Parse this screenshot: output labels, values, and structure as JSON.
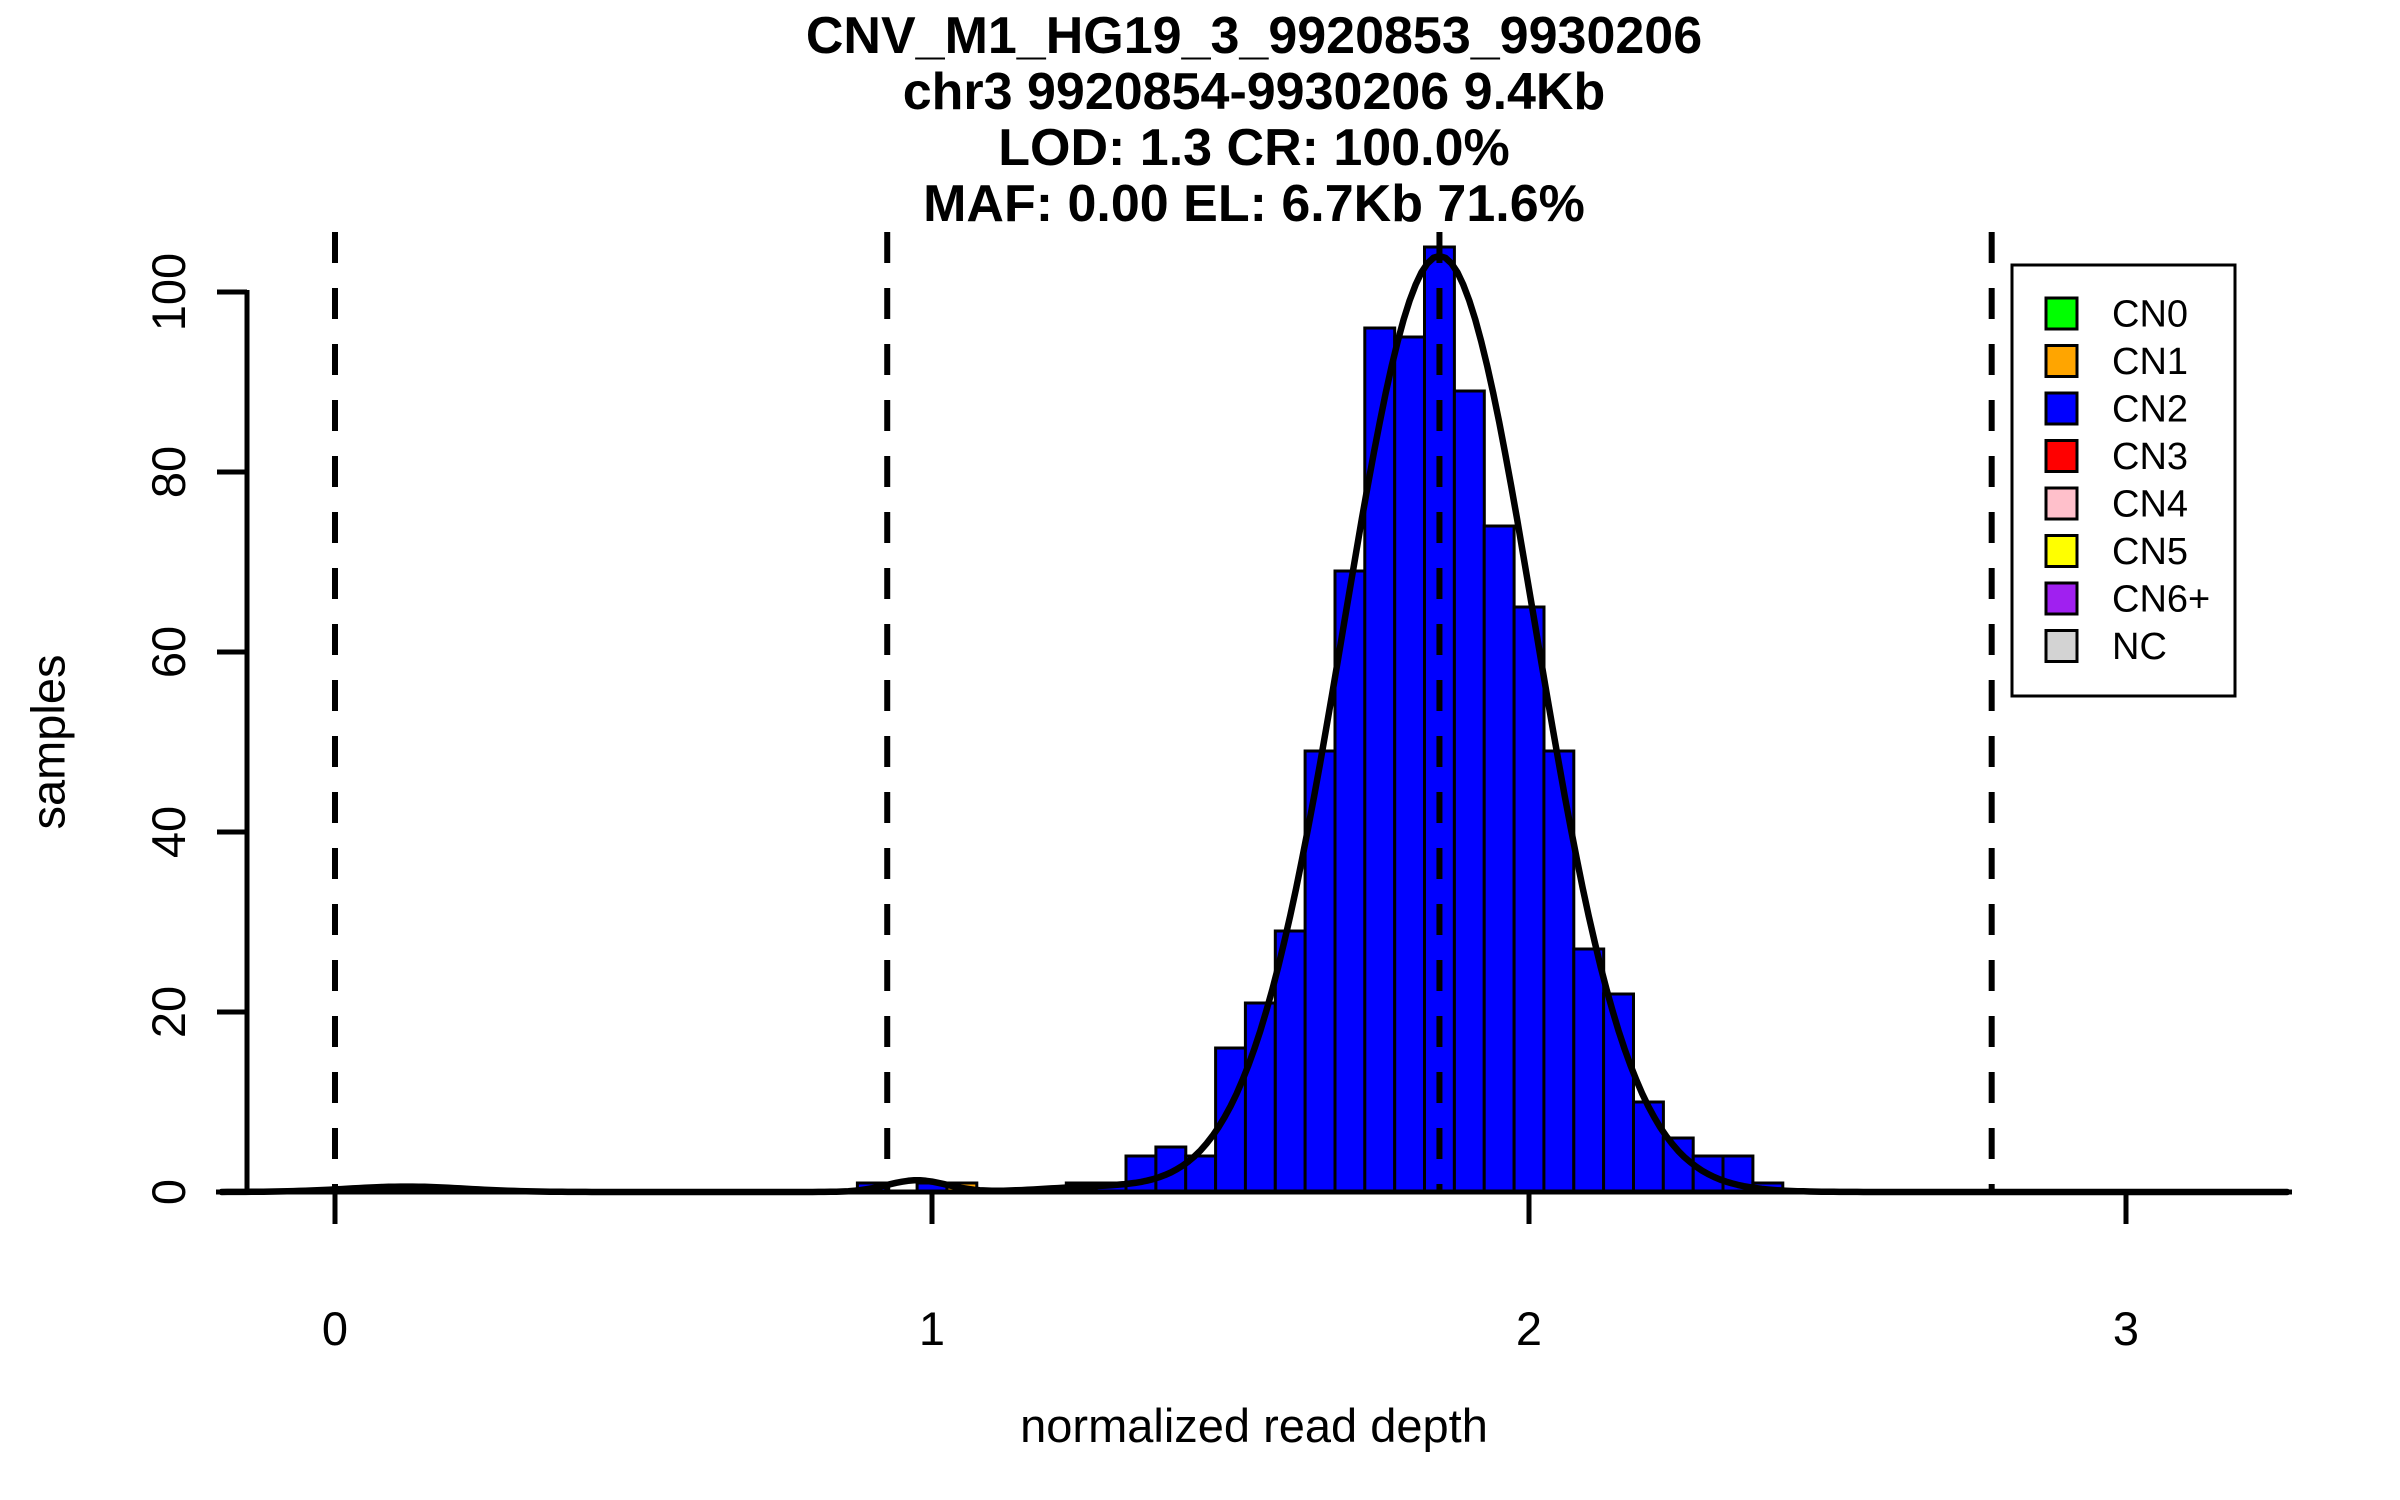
{
  "chart_data": {
    "type": "bar",
    "title_lines": [
      "CNV_M1_HG19_3_9920853_9930206",
      "chr3 9920854-9930206 9.4Kb",
      "LOD: 1.3 CR: 100.0%",
      "MAF: 0.00 EL: 6.7Kb 71.6%"
    ],
    "xlabel": "normalized read depth",
    "ylabel": "samples",
    "x_ticks": [
      "0",
      "1",
      "2",
      "3"
    ],
    "x_tick_values": [
      0,
      1,
      2,
      3
    ],
    "y_ticks": [
      "0",
      "20",
      "40",
      "60",
      "80",
      "100"
    ],
    "y_tick_values": [
      0,
      20,
      40,
      60,
      80,
      100
    ],
    "xlim": [
      -0.2,
      3.28
    ],
    "ylim": [
      0,
      107
    ],
    "grid": false,
    "bin_width": 0.05,
    "bars": [
      {
        "center": 0.9,
        "count": 1,
        "cn": "CN2"
      },
      {
        "center": 1.0,
        "count": 1,
        "cn": "CN2"
      },
      {
        "center": 1.05,
        "count": 1,
        "cn": "CN1"
      },
      {
        "center": 1.25,
        "count": 1,
        "cn": "CN2"
      },
      {
        "center": 1.3,
        "count": 1,
        "cn": "CN2"
      },
      {
        "center": 1.35,
        "count": 4,
        "cn": "CN2"
      },
      {
        "center": 1.4,
        "count": 5,
        "cn": "CN2"
      },
      {
        "center": 1.45,
        "count": 4,
        "cn": "CN2"
      },
      {
        "center": 1.5,
        "count": 16,
        "cn": "CN2"
      },
      {
        "center": 1.55,
        "count": 21,
        "cn": "CN2"
      },
      {
        "center": 1.6,
        "count": 29,
        "cn": "CN2"
      },
      {
        "center": 1.65,
        "count": 49,
        "cn": "CN2"
      },
      {
        "center": 1.7,
        "count": 69,
        "cn": "CN2"
      },
      {
        "center": 1.75,
        "count": 96,
        "cn": "CN2"
      },
      {
        "center": 1.8,
        "count": 95,
        "cn": "CN2"
      },
      {
        "center": 1.85,
        "count": 105,
        "cn": "CN2"
      },
      {
        "center": 1.9,
        "count": 89,
        "cn": "CN2"
      },
      {
        "center": 1.95,
        "count": 74,
        "cn": "CN2"
      },
      {
        "center": 2.0,
        "count": 65,
        "cn": "CN2"
      },
      {
        "center": 2.05,
        "count": 49,
        "cn": "CN2"
      },
      {
        "center": 2.1,
        "count": 27,
        "cn": "CN2"
      },
      {
        "center": 2.15,
        "count": 22,
        "cn": "CN2"
      },
      {
        "center": 2.2,
        "count": 10,
        "cn": "CN2"
      },
      {
        "center": 2.25,
        "count": 6,
        "cn": "CN2"
      },
      {
        "center": 2.3,
        "count": 4,
        "cn": "CN2"
      },
      {
        "center": 2.35,
        "count": 4,
        "cn": "CN2"
      },
      {
        "center": 2.4,
        "count": 1,
        "cn": "CN2"
      }
    ],
    "fit_curve": {
      "components": [
        {
          "mu": 1.85,
          "sigma": 0.16,
          "amp": 104
        },
        {
          "mu": 0.975,
          "sigma": 0.05,
          "amp": 1.3
        },
        {
          "mu": 0.12,
          "sigma": 0.1,
          "amp": 0.6
        },
        {
          "mu": 1.27,
          "sigma": 0.09,
          "amp": 0.5
        }
      ]
    },
    "dashed_vlines": [
      0,
      0.925,
      1.85,
      2.775
    ],
    "legend": {
      "position": "top-right",
      "entries": [
        {
          "label": "CN0",
          "color": "#00FF00"
        },
        {
          "label": "CN1",
          "color": "#FFA500"
        },
        {
          "label": "CN2",
          "color": "#0000FF"
        },
        {
          "label": "CN3",
          "color": "#FF0000"
        },
        {
          "label": "CN4",
          "color": "#FFC0CB"
        },
        {
          "label": "CN5",
          "color": "#FFFF00"
        },
        {
          "label": "CN6+",
          "color": "#A020F0"
        },
        {
          "label": "NC",
          "color": "#D3D3D3"
        }
      ]
    },
    "colors": {
      "bar_outline": "#000000",
      "curve": "#000000",
      "axis": "#000000",
      "background": "#FFFFFF"
    }
  }
}
